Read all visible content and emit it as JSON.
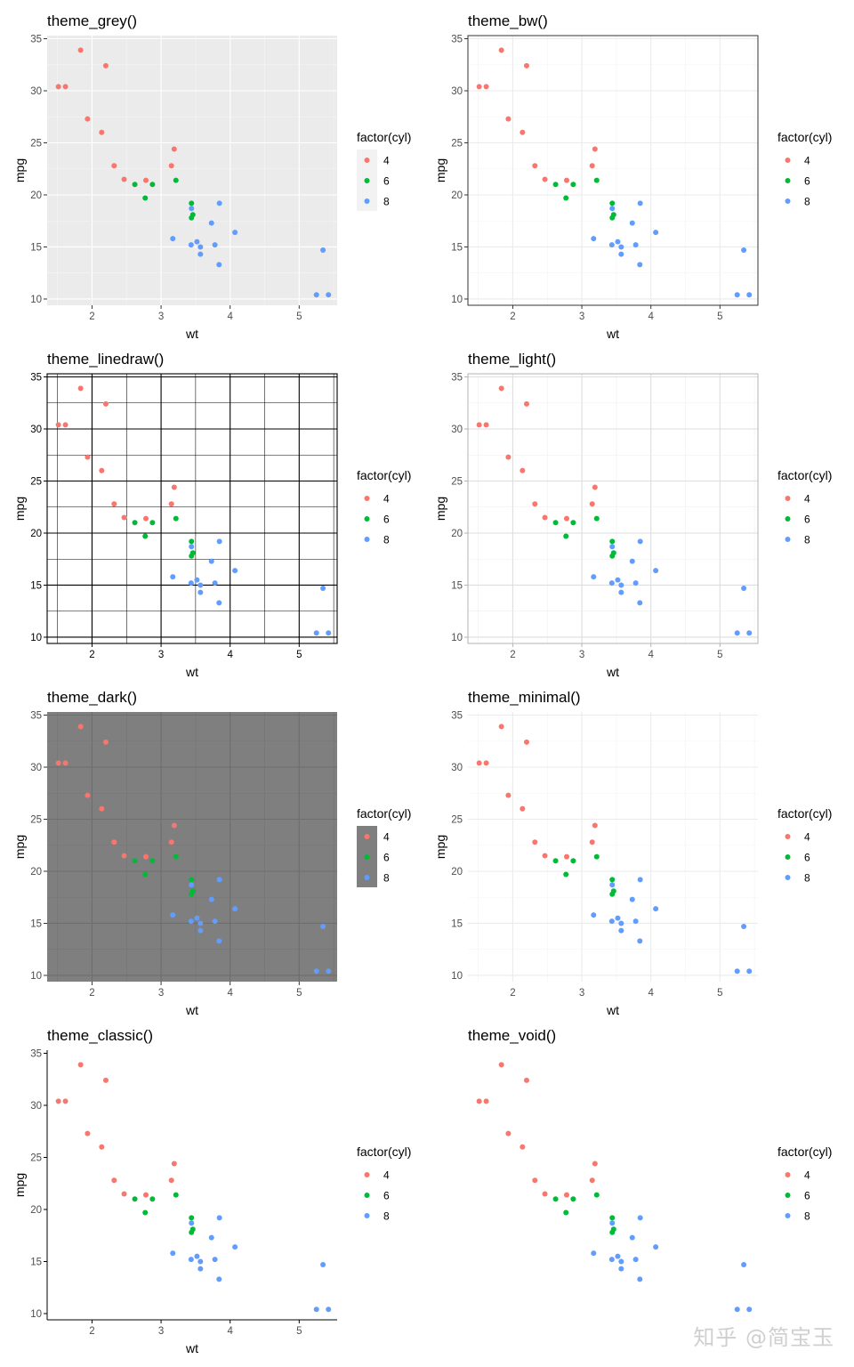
{
  "watermark": "知乎 @简宝玉",
  "palette": {
    "4": "#F8766D",
    "6": "#00BA38",
    "8": "#619CFF"
  },
  "chart_data": [
    {
      "type": "scatter",
      "title": "theme_grey()",
      "xlabel": "wt",
      "ylabel": "mpg",
      "xlim": [
        1.35,
        5.55
      ],
      "ylim": [
        9.4,
        35.3
      ],
      "xticks": [
        2,
        3,
        4,
        5
      ],
      "yticks": [
        10,
        15,
        20,
        25,
        30,
        35
      ],
      "legend": {
        "title": "factor(cyl)",
        "entries": [
          "4",
          "6",
          "8"
        ],
        "placement": "right"
      },
      "theme": "grey",
      "series": [
        {
          "name": "4",
          "color": "#F8766D",
          "x": [
            1.513,
            1.615,
            1.835,
            1.935,
            2.2,
            2.14,
            2.32,
            2.465,
            2.78,
            3.15,
            3.19
          ],
          "y": [
            30.4,
            30.4,
            33.9,
            27.3,
            32.4,
            26.0,
            22.8,
            21.5,
            21.4,
            22.8,
            24.4
          ]
        },
        {
          "name": "6",
          "color": "#00BA38",
          "x": [
            2.62,
            2.77,
            2.875,
            3.215,
            3.44,
            3.44,
            3.46
          ],
          "y": [
            21.0,
            19.7,
            21.0,
            21.4,
            19.2,
            17.8,
            18.1
          ]
        },
        {
          "name": "8",
          "color": "#619CFF",
          "x": [
            3.17,
            3.435,
            3.44,
            3.52,
            3.57,
            3.57,
            3.73,
            3.78,
            3.84,
            3.845,
            4.07,
            5.25,
            5.345,
            5.424
          ],
          "y": [
            15.8,
            15.2,
            18.7,
            15.5,
            14.3,
            15.0,
            17.3,
            15.2,
            13.3,
            19.2,
            16.4,
            10.4,
            14.7,
            10.4
          ]
        }
      ]
    },
    {
      "type": "scatter",
      "title": "theme_bw()",
      "xlabel": "wt",
      "ylabel": "mpg",
      "xlim": [
        1.35,
        5.55
      ],
      "ylim": [
        9.4,
        35.3
      ],
      "xticks": [
        2,
        3,
        4,
        5
      ],
      "yticks": [
        10,
        15,
        20,
        25,
        30,
        35
      ],
      "legend": {
        "title": "factor(cyl)",
        "entries": [
          "4",
          "6",
          "8"
        ],
        "placement": "right"
      },
      "theme": "bw"
    },
    {
      "type": "scatter",
      "title": "theme_linedraw()",
      "xlabel": "wt",
      "ylabel": "mpg",
      "xlim": [
        1.35,
        5.55
      ],
      "ylim": [
        9.4,
        35.3
      ],
      "xticks": [
        2,
        3,
        4,
        5
      ],
      "yticks": [
        10,
        15,
        20,
        25,
        30,
        35
      ],
      "legend": {
        "title": "factor(cyl)",
        "entries": [
          "4",
          "6",
          "8"
        ],
        "placement": "right"
      },
      "theme": "linedraw"
    },
    {
      "type": "scatter",
      "title": "theme_light()",
      "xlabel": "wt",
      "ylabel": "mpg",
      "xlim": [
        1.35,
        5.55
      ],
      "ylim": [
        9.4,
        35.3
      ],
      "xticks": [
        2,
        3,
        4,
        5
      ],
      "yticks": [
        10,
        15,
        20,
        25,
        30,
        35
      ],
      "legend": {
        "title": "factor(cyl)",
        "entries": [
          "4",
          "6",
          "8"
        ],
        "placement": "right"
      },
      "theme": "light"
    },
    {
      "type": "scatter",
      "title": "theme_dark()",
      "xlabel": "wt",
      "ylabel": "mpg",
      "xlim": [
        1.35,
        5.55
      ],
      "ylim": [
        9.4,
        35.3
      ],
      "xticks": [
        2,
        3,
        4,
        5
      ],
      "yticks": [
        10,
        15,
        20,
        25,
        30,
        35
      ],
      "legend": {
        "title": "factor(cyl)",
        "entries": [
          "4",
          "6",
          "8"
        ],
        "placement": "right"
      },
      "theme": "dark"
    },
    {
      "type": "scatter",
      "title": "theme_minimal()",
      "xlabel": "wt",
      "ylabel": "mpg",
      "xlim": [
        1.35,
        5.55
      ],
      "ylim": [
        9.4,
        35.3
      ],
      "xticks": [
        2,
        3,
        4,
        5
      ],
      "yticks": [
        10,
        15,
        20,
        25,
        30,
        35
      ],
      "legend": {
        "title": "factor(cyl)",
        "entries": [
          "4",
          "6",
          "8"
        ],
        "placement": "right"
      },
      "theme": "minimal"
    },
    {
      "type": "scatter",
      "title": "theme_classic()",
      "xlabel": "wt",
      "ylabel": "mpg",
      "xlim": [
        1.35,
        5.55
      ],
      "ylim": [
        9.4,
        35.3
      ],
      "xticks": [
        2,
        3,
        4,
        5
      ],
      "yticks": [
        10,
        15,
        20,
        25,
        30,
        35
      ],
      "legend": {
        "title": "factor(cyl)",
        "entries": [
          "4",
          "6",
          "8"
        ],
        "placement": "right"
      },
      "theme": "classic"
    },
    {
      "type": "scatter",
      "title": "theme_void()",
      "xlabel": "",
      "ylabel": "",
      "xlim": [
        1.35,
        5.55
      ],
      "ylim": [
        9.4,
        35.3
      ],
      "xticks": [],
      "yticks": [],
      "legend": {
        "title": "factor(cyl)",
        "entries": [
          "4",
          "6",
          "8"
        ],
        "placement": "right"
      },
      "theme": "void"
    }
  ]
}
